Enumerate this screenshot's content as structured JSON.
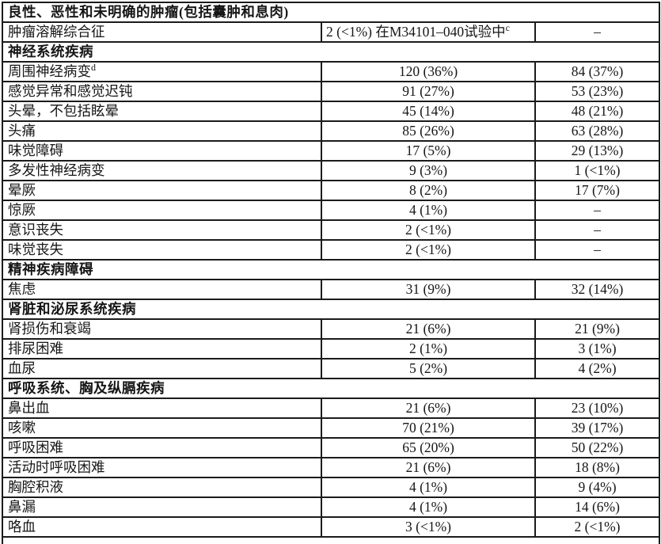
{
  "document": {
    "kind": "adverse-events-table-fragment",
    "text_color": "#161616",
    "border_color": "#1b1b1b",
    "background_color": "#ffffff"
  },
  "table": {
    "rows": [
      {
        "type": "section",
        "label": "良性、恶性和未明确的肿瘤(包括囊肿和息肉)"
      },
      {
        "type": "data",
        "term": "肿瘤溶解综合征",
        "values": [
          {
            "text": "2 (<1%) 在M34101–040试验中",
            "sup": "c",
            "align": "left"
          },
          {
            "text": "–"
          }
        ]
      },
      {
        "type": "section",
        "label": "神经系统疾病"
      },
      {
        "type": "data",
        "term": "周围神经病变",
        "term_sup": "d",
        "values": [
          {
            "text": "120 (36%)"
          },
          {
            "text": "84 (37%)"
          }
        ]
      },
      {
        "type": "data",
        "term": "感觉异常和感觉迟钝",
        "values": [
          {
            "text": "91 (27%)"
          },
          {
            "text": "53 (23%)"
          }
        ]
      },
      {
        "type": "data",
        "term": "头晕，不包括眩晕",
        "values": [
          {
            "text": "45 (14%)"
          },
          {
            "text": "48 (21%)"
          }
        ]
      },
      {
        "type": "data",
        "term": "头痛",
        "values": [
          {
            "text": "85 (26%)"
          },
          {
            "text": "63 (28%)"
          }
        ]
      },
      {
        "type": "data",
        "term": "味觉障碍",
        "values": [
          {
            "text": "17 (5%)"
          },
          {
            "text": "29 (13%)"
          }
        ]
      },
      {
        "type": "data",
        "term": "多发性神经病变",
        "values": [
          {
            "text": "9 (3%)"
          },
          {
            "text": "1 (<1%)"
          }
        ]
      },
      {
        "type": "data",
        "term": "晕厥",
        "values": [
          {
            "text": "8 (2%)"
          },
          {
            "text": "17 (7%)"
          }
        ]
      },
      {
        "type": "data",
        "term": "惊厥",
        "values": [
          {
            "text": "4 (1%)"
          },
          {
            "text": "–"
          }
        ]
      },
      {
        "type": "data",
        "term": "意识丧失",
        "values": [
          {
            "text": "2 (<1%)"
          },
          {
            "text": "–"
          }
        ]
      },
      {
        "type": "data",
        "term": "味觉丧失",
        "values": [
          {
            "text": "2 (<1%)"
          },
          {
            "text": "–"
          }
        ]
      },
      {
        "type": "section",
        "label": "精神疾病障碍"
      },
      {
        "type": "data",
        "term": "焦虑",
        "values": [
          {
            "text": "31 (9%)"
          },
          {
            "text": "32 (14%)"
          }
        ]
      },
      {
        "type": "section",
        "label": "肾脏和泌尿系统疾病"
      },
      {
        "type": "data",
        "term": "肾损伤和衰竭",
        "values": [
          {
            "text": "21 (6%)"
          },
          {
            "text": "21 (9%)"
          }
        ]
      },
      {
        "type": "data",
        "term": "排尿困难",
        "values": [
          {
            "text": "2 (1%)"
          },
          {
            "text": "3 (1%)"
          }
        ]
      },
      {
        "type": "data",
        "term": "血尿",
        "values": [
          {
            "text": "5 (2%)"
          },
          {
            "text": "4 (2%)"
          }
        ]
      },
      {
        "type": "section",
        "label": "呼吸系统、胸及纵膈疾病"
      },
      {
        "type": "data",
        "term": "鼻出血",
        "values": [
          {
            "text": "21 (6%)"
          },
          {
            "text": "23 (10%)"
          }
        ]
      },
      {
        "type": "data",
        "term": "咳嗽",
        "values": [
          {
            "text": "70 (21%)"
          },
          {
            "text": "39 (17%)"
          }
        ]
      },
      {
        "type": "data",
        "term": "呼吸困难",
        "values": [
          {
            "text": "65 (20%)"
          },
          {
            "text": "50 (22%)"
          }
        ]
      },
      {
        "type": "data",
        "term": "活动时呼吸困难",
        "values": [
          {
            "text": "21 (6%)"
          },
          {
            "text": "18 (8%)"
          }
        ]
      },
      {
        "type": "data",
        "term": "胸腔积液",
        "values": [
          {
            "text": "4 (1%)"
          },
          {
            "text": "9 (4%)"
          }
        ]
      },
      {
        "type": "data",
        "term": "鼻漏",
        "values": [
          {
            "text": "4 (1%)"
          },
          {
            "text": "14 (6%)"
          }
        ]
      },
      {
        "type": "data",
        "term": "咯血",
        "values": [
          {
            "text": "3 (<1%)"
          },
          {
            "text": "2 (<1%)"
          }
        ]
      },
      {
        "type": "partial"
      }
    ]
  }
}
